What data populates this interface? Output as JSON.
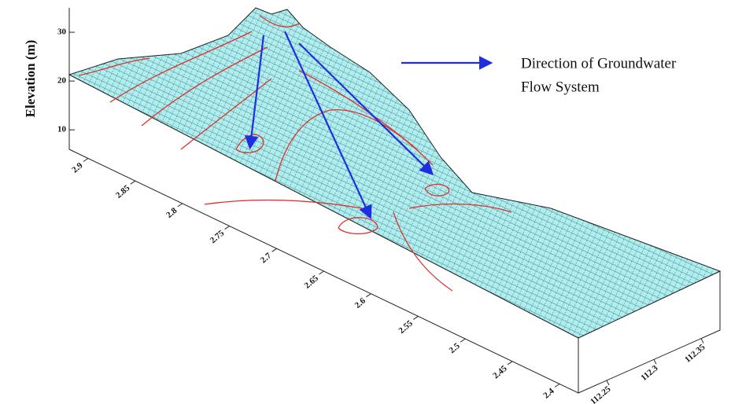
{
  "chart_data": {
    "type": "surface",
    "zlabel": "Elevation (m)",
    "zlim": [
      6,
      35
    ],
    "zticks": [
      10,
      20,
      30
    ],
    "xlim": [
      2.92,
      2.38
    ],
    "xticks": [
      2.9,
      2.85,
      2.8,
      2.75,
      2.7,
      2.65,
      2.6,
      2.55,
      2.5,
      2.45,
      2.4
    ],
    "ylim": [
      112.22,
      112.37
    ],
    "yticks": [
      112.25,
      112.3,
      112.35
    ],
    "legend_text": [
      "Direction of Groundwater",
      "Flow System"
    ],
    "arrow_color": "#1f2fe0",
    "contour_color": "#e0302a",
    "surface_color": "#aeeef0"
  }
}
